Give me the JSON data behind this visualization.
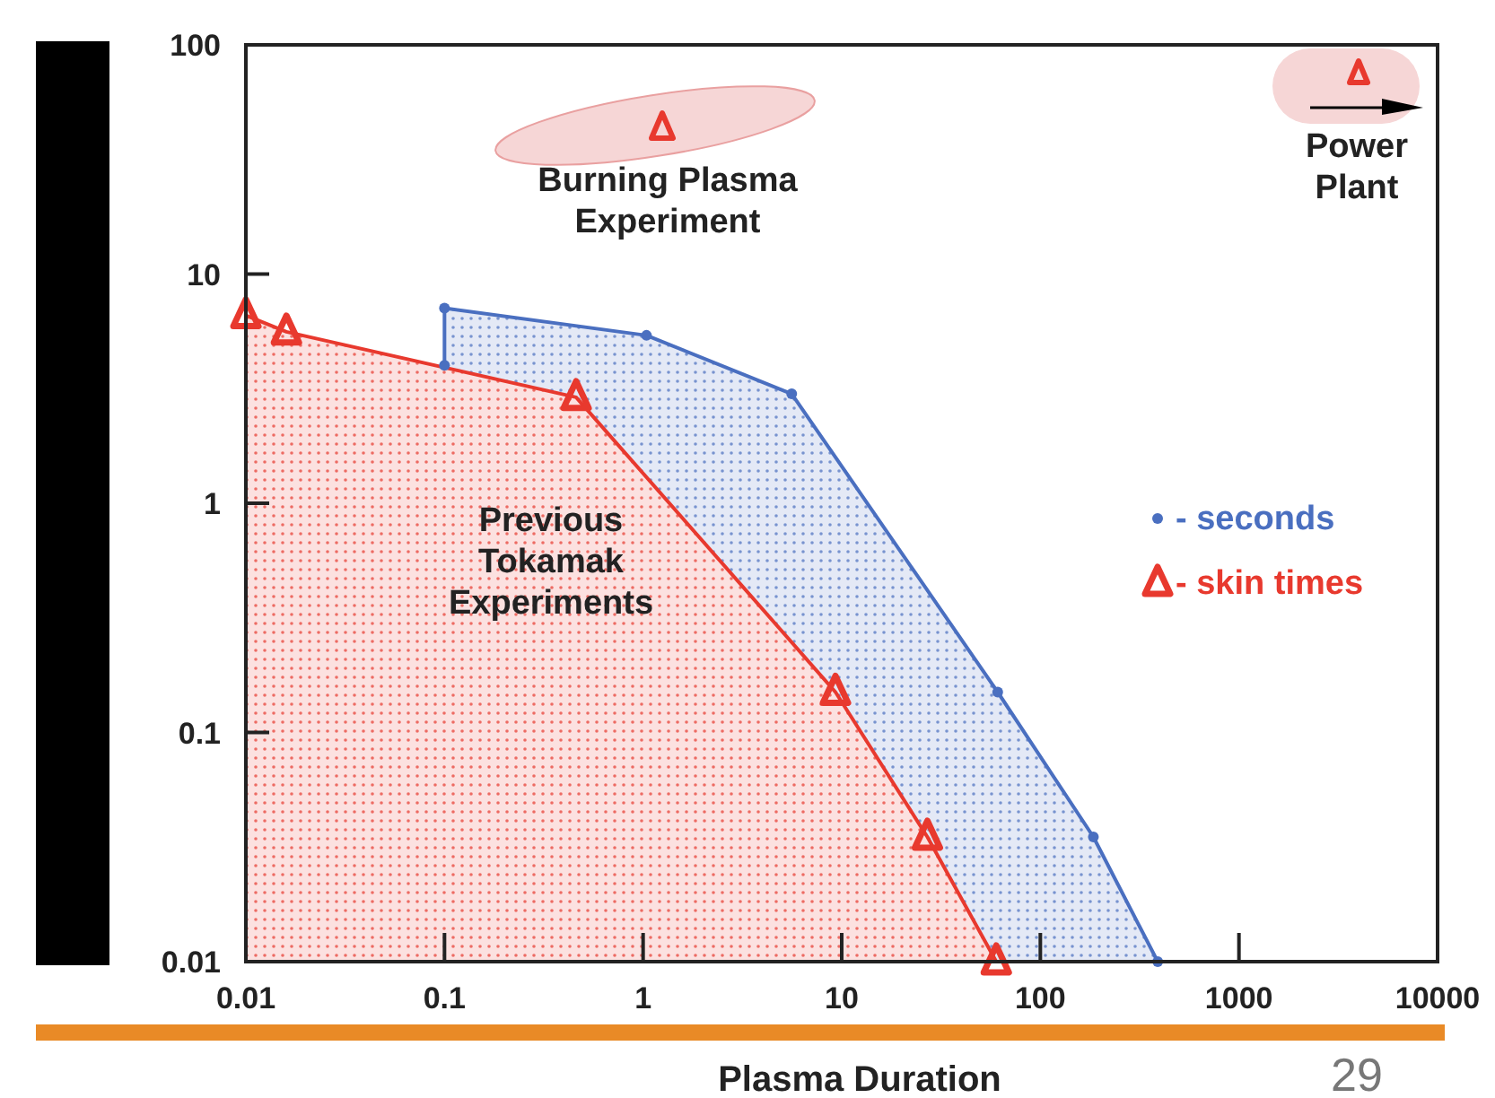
{
  "chart_data": {
    "type": "area",
    "xlabel": "Plasma Duration",
    "log": "xy",
    "xlim": [
      0.01,
      10000
    ],
    "ylim": [
      0.01,
      100
    ],
    "xticks": [
      0.01,
      0.1,
      1,
      10,
      100,
      1000,
      10000
    ],
    "yticks": [
      0.01,
      0.1,
      1,
      10,
      100
    ],
    "grid": false,
    "legend": "right",
    "series": [
      {
        "name": "- seconds",
        "color": "#4a6fc0",
        "marker": "circle",
        "x": [
          0.1,
          0.1,
          1.04,
          5.6,
          61,
          185,
          390
        ],
        "values": [
          4.0,
          7.1,
          5.4,
          3.0,
          0.15,
          0.035,
          0.01
        ]
      },
      {
        "name": "- skin times",
        "color": "#e8392e",
        "marker": "triangle",
        "x": [
          0.01,
          0.016,
          0.46,
          9.3,
          27,
          60
        ],
        "values": [
          6.6,
          5.6,
          2.9,
          0.15,
          0.035,
          0.01
        ]
      }
    ],
    "annotations": [
      "Burning Plasma Experiment",
      "Power Plant",
      "Previous Tokamak Experiments",
      "29"
    ]
  }
}
